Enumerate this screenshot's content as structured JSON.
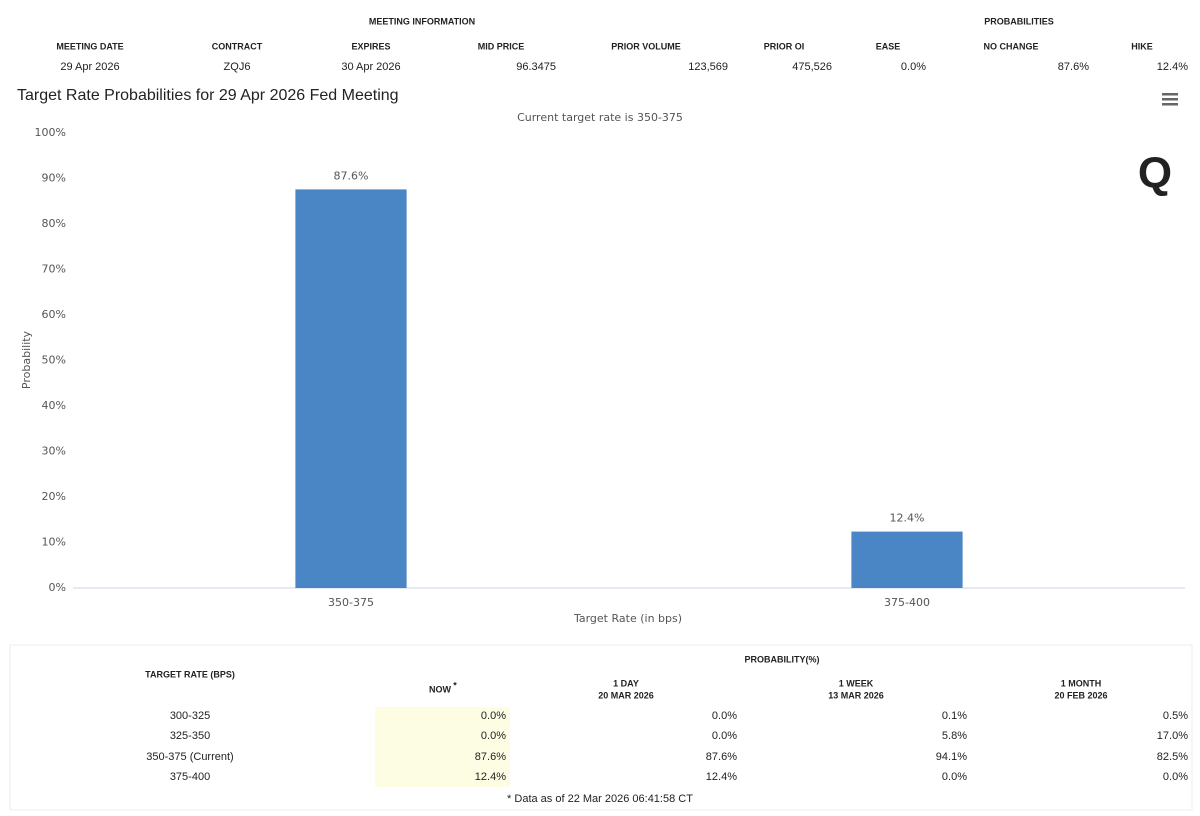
{
  "meeting_info": {
    "group_titles": [
      "MEETING INFORMATION",
      "PROBABILITIES"
    ],
    "columns": [
      "MEETING DATE",
      "CONTRACT",
      "EXPIRES",
      "MID PRICE",
      "PRIOR VOLUME",
      "PRIOR OI",
      "EASE",
      "NO CHANGE",
      "HIKE"
    ],
    "row": [
      "29 Apr 2026",
      "ZQJ6",
      "30 Apr 2026",
      "96.3475",
      "123,569",
      "475,526",
      "0.0%",
      "87.6%",
      "12.4%"
    ]
  },
  "chart_data": {
    "type": "bar",
    "title": "Target Rate Probabilities for 29 Apr 2026 Fed Meeting",
    "subtitle": "Current target rate is 350-375",
    "logo": "Q",
    "x_label": "Target Rate (in bps)",
    "y_label": "Probability",
    "categories": [
      "350-375",
      "375-400"
    ],
    "values": [
      87.6,
      12.4
    ],
    "value_labels": [
      "87.6%",
      "12.4%"
    ],
    "color": "#4a86c5",
    "ylim": [
      0,
      100
    ],
    "yticks": [
      {
        "value": 0,
        "label": "0%"
      },
      {
        "value": 10,
        "label": "10%"
      },
      {
        "value": 20,
        "label": "20%"
      },
      {
        "value": 30,
        "label": "30%"
      },
      {
        "value": 40,
        "label": "40%"
      },
      {
        "value": 50,
        "label": "50%"
      },
      {
        "value": 60,
        "label": "60%"
      },
      {
        "value": 70,
        "label": "70%"
      },
      {
        "value": 80,
        "label": "80%"
      },
      {
        "value": 90,
        "label": "90%"
      },
      {
        "value": 100,
        "label": "100%"
      }
    ],
    "grid": false
  },
  "probability_table": {
    "row_header": "TARGET RATE (BPS)",
    "group_title": "PROBABILITY(%)",
    "columns": [
      {
        "label": "NOW",
        "note": "*"
      },
      {
        "label": "1 DAY",
        "date": "20 MAR 2026"
      },
      {
        "label": "1 WEEK",
        "date": "13 MAR 2026"
      },
      {
        "label": "1 MONTH",
        "date": "20 FEB 2026"
      }
    ],
    "rows": [
      [
        "300-325",
        "0.0%",
        "0.0%",
        "0.1%",
        "0.5%"
      ],
      [
        "325-350",
        "0.0%",
        "0.0%",
        "5.8%",
        "17.0%"
      ],
      [
        "350-375 (Current)",
        "87.6%",
        "87.6%",
        "94.1%",
        "82.5%"
      ],
      [
        "375-400",
        "12.4%",
        "12.4%",
        "0.0%",
        "0.0%"
      ]
    ],
    "footnote": "* Data as of 22 Mar 2026 06:41:58 CT"
  }
}
